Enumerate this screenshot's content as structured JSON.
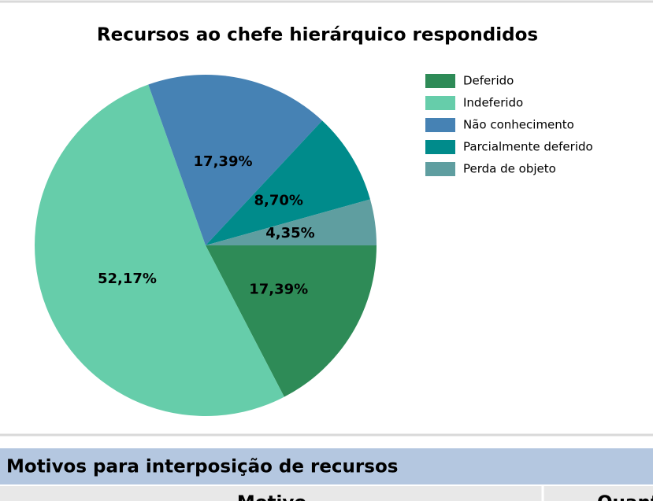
{
  "chart_data": {
    "type": "pie",
    "title": "Recursos ao chefe hierárquico respondidos",
    "categories": [
      "Deferido",
      "Indeferido",
      "Não conhecimento",
      "Parcialmente deferido",
      "Perda de objeto"
    ],
    "values": [
      17.39,
      52.17,
      17.39,
      8.7,
      4.35
    ],
    "value_labels": [
      "17,39%",
      "52,17%",
      "17,39%",
      "8,70%",
      "4,35%"
    ],
    "colors": [
      "#2e8b57",
      "#66cdaa",
      "#4682b4",
      "#008b8b",
      "#5f9ea0"
    ],
    "legend": "right"
  },
  "table": {
    "title": "Motivos para interposição de recursos",
    "columns": [
      "Motivo",
      "Quantidade"
    ]
  }
}
